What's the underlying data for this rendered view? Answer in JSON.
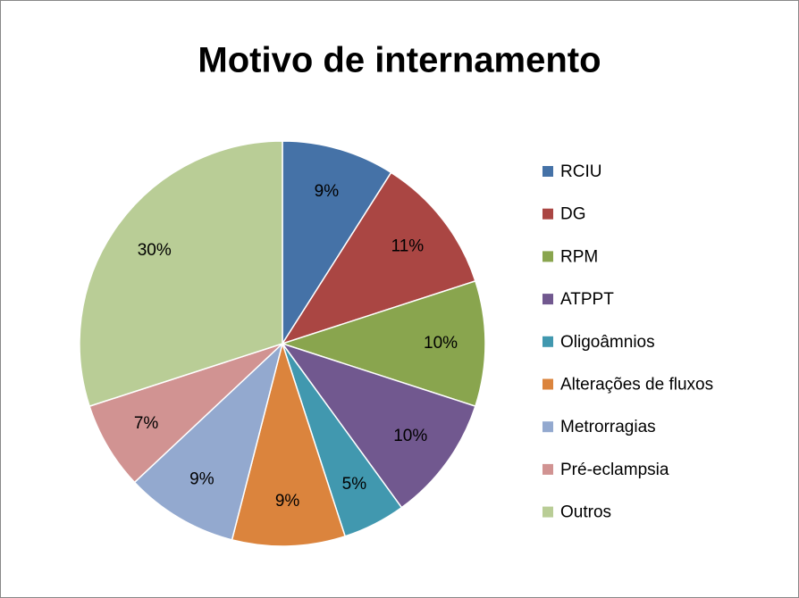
{
  "chart_data": {
    "type": "pie",
    "title": "Motivo de internamento",
    "categories": [
      "RCIU",
      "DG",
      "RPM",
      "ATPPT",
      "Oligoâmnios",
      "Alterações de fluxos",
      "Metrorragias",
      "Pré-eclampsia",
      "Outros"
    ],
    "values": [
      9,
      11,
      10,
      10,
      5,
      9,
      9,
      7,
      30
    ],
    "value_labels": [
      "9%",
      "11%",
      "10%",
      "10%",
      "5%",
      "9%",
      "9%",
      "7%",
      "30%"
    ],
    "colors": [
      "#4572a7",
      "#aa4643",
      "#89a54e",
      "#71588f",
      "#4198af",
      "#db843d",
      "#93a9cf",
      "#d19392",
      "#b9cd96"
    ],
    "legend": "right"
  }
}
